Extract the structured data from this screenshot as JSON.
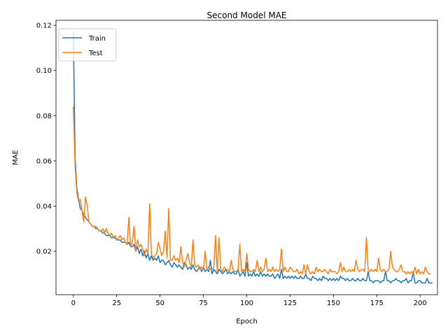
{
  "chart_data": {
    "type": "line",
    "title": "Second Model MAE",
    "xlabel": "Epoch",
    "ylabel": "MAE",
    "xlim": [
      -10,
      210
    ],
    "ylim": [
      0.0008,
      0.1222
    ],
    "xticks": [
      0,
      25,
      50,
      75,
      100,
      125,
      150,
      175,
      200
    ],
    "yticks": [
      0.02,
      0.04,
      0.06,
      0.08,
      0.1,
      0.12
    ],
    "ytick_labels": [
      "0.02",
      "0.04",
      "0.06",
      "0.08",
      "0.10",
      "0.12"
    ],
    "grid": false,
    "legend_position": "upper-left",
    "series": [
      {
        "name": "Train",
        "color": "#1f77b4",
        "values": [
          0.117,
          0.062,
          0.048,
          0.043,
          0.039,
          0.038,
          0.036,
          0.035,
          0.034,
          0.033,
          0.032,
          0.031,
          0.031,
          0.03,
          0.03,
          0.029,
          0.029,
          0.028,
          0.028,
          0.027,
          0.027,
          0.027,
          0.026,
          0.026,
          0.026,
          0.025,
          0.025,
          0.025,
          0.024,
          0.024,
          0.024,
          0.023,
          0.024,
          0.022,
          0.022,
          0.023,
          0.02,
          0.022,
          0.019,
          0.021,
          0.018,
          0.02,
          0.017,
          0.019,
          0.016,
          0.018,
          0.016,
          0.017,
          0.016,
          0.018,
          0.015,
          0.016,
          0.016,
          0.014,
          0.015,
          0.016,
          0.014,
          0.013,
          0.015,
          0.014,
          0.013,
          0.014,
          0.013,
          0.012,
          0.015,
          0.014,
          0.012,
          0.013,
          0.012,
          0.014,
          0.012,
          0.011,
          0.012,
          0.013,
          0.011,
          0.013,
          0.011,
          0.012,
          0.011,
          0.016,
          0.01,
          0.012,
          0.011,
          0.01,
          0.012,
          0.011,
          0.01,
          0.011,
          0.012,
          0.01,
          0.011,
          0.01,
          0.011,
          0.01,
          0.01,
          0.012,
          0.009,
          0.01,
          0.011,
          0.009,
          0.015,
          0.009,
          0.01,
          0.009,
          0.011,
          0.009,
          0.01,
          0.009,
          0.011,
          0.009,
          0.01,
          0.009,
          0.01,
          0.009,
          0.009,
          0.01,
          0.008,
          0.009,
          0.01,
          0.008,
          0.012,
          0.008,
          0.009,
          0.008,
          0.009,
          0.008,
          0.009,
          0.008,
          0.009,
          0.008,
          0.008,
          0.009,
          0.008,
          0.008,
          0.01,
          0.008,
          0.008,
          0.007,
          0.009,
          0.008,
          0.008,
          0.007,
          0.008,
          0.007,
          0.009,
          0.008,
          0.008,
          0.007,
          0.008,
          0.007,
          0.008,
          0.007,
          0.008,
          0.007,
          0.009,
          0.008,
          0.008,
          0.007,
          0.008,
          0.007,
          0.007,
          0.008,
          0.007,
          0.007,
          0.008,
          0.007,
          0.007,
          0.008,
          0.007,
          0.007,
          0.011,
          0.007,
          0.007,
          0.006,
          0.007,
          0.007,
          0.007,
          0.006,
          0.007,
          0.007,
          0.011,
          0.007,
          0.007,
          0.006,
          0.007,
          0.007,
          0.008,
          0.007,
          0.007,
          0.006,
          0.007,
          0.007,
          0.008,
          0.006,
          0.007,
          0.007,
          0.011,
          0.006,
          0.006,
          0.007,
          0.007,
          0.006,
          0.006,
          0.006,
          0.008,
          0.006,
          0.006,
          0.006
        ]
      },
      {
        "name": "Test",
        "color": "#ff7f0e",
        "values": [
          0.084,
          0.058,
          0.046,
          0.042,
          0.043,
          0.038,
          0.033,
          0.044,
          0.04,
          0.033,
          0.032,
          0.031,
          0.031,
          0.031,
          0.03,
          0.029,
          0.029,
          0.03,
          0.028,
          0.03,
          0.028,
          0.027,
          0.028,
          0.026,
          0.027,
          0.025,
          0.026,
          0.027,
          0.025,
          0.026,
          0.024,
          0.023,
          0.035,
          0.022,
          0.024,
          0.031,
          0.02,
          0.025,
          0.022,
          0.023,
          0.021,
          0.018,
          0.021,
          0.019,
          0.041,
          0.019,
          0.017,
          0.018,
          0.019,
          0.024,
          0.021,
          0.018,
          0.02,
          0.029,
          0.017,
          0.039,
          0.016,
          0.016,
          0.018,
          0.016,
          0.017,
          0.015,
          0.022,
          0.015,
          0.013,
          0.016,
          0.019,
          0.015,
          0.013,
          0.025,
          0.014,
          0.013,
          0.014,
          0.012,
          0.013,
          0.012,
          0.02,
          0.012,
          0.013,
          0.012,
          0.012,
          0.013,
          0.027,
          0.011,
          0.026,
          0.012,
          0.011,
          0.013,
          0.012,
          0.012,
          0.011,
          0.016,
          0.012,
          0.011,
          0.011,
          0.012,
          0.023,
          0.011,
          0.012,
          0.011,
          0.019,
          0.012,
          0.011,
          0.011,
          0.012,
          0.011,
          0.016,
          0.011,
          0.013,
          0.011,
          0.012,
          0.017,
          0.011,
          0.012,
          0.011,
          0.013,
          0.011,
          0.012,
          0.011,
          0.012,
          0.021,
          0.011,
          0.013,
          0.011,
          0.011,
          0.013,
          0.012,
          0.011,
          0.011,
          0.012,
          0.01,
          0.011,
          0.01,
          0.014,
          0.01,
          0.014,
          0.011,
          0.01,
          0.011,
          0.01,
          0.013,
          0.011,
          0.012,
          0.011,
          0.011,
          0.012,
          0.011,
          0.01,
          0.012,
          0.011,
          0.011,
          0.011,
          0.01,
          0.011,
          0.015,
          0.011,
          0.013,
          0.011,
          0.011,
          0.012,
          0.011,
          0.012,
          0.011,
          0.016,
          0.012,
          0.011,
          0.012,
          0.012,
          0.011,
          0.026,
          0.012,
          0.011,
          0.012,
          0.011,
          0.012,
          0.011,
          0.017,
          0.012,
          0.011,
          0.012,
          0.011,
          0.011,
          0.012,
          0.02,
          0.013,
          0.012,
          0.011,
          0.011,
          0.012,
          0.014,
          0.011,
          0.011,
          0.01,
          0.011,
          0.01,
          0.011,
          0.01,
          0.013,
          0.01,
          0.012,
          0.01,
          0.011,
          0.01,
          0.013,
          0.011,
          0.01,
          0.01
        ]
      }
    ]
  }
}
